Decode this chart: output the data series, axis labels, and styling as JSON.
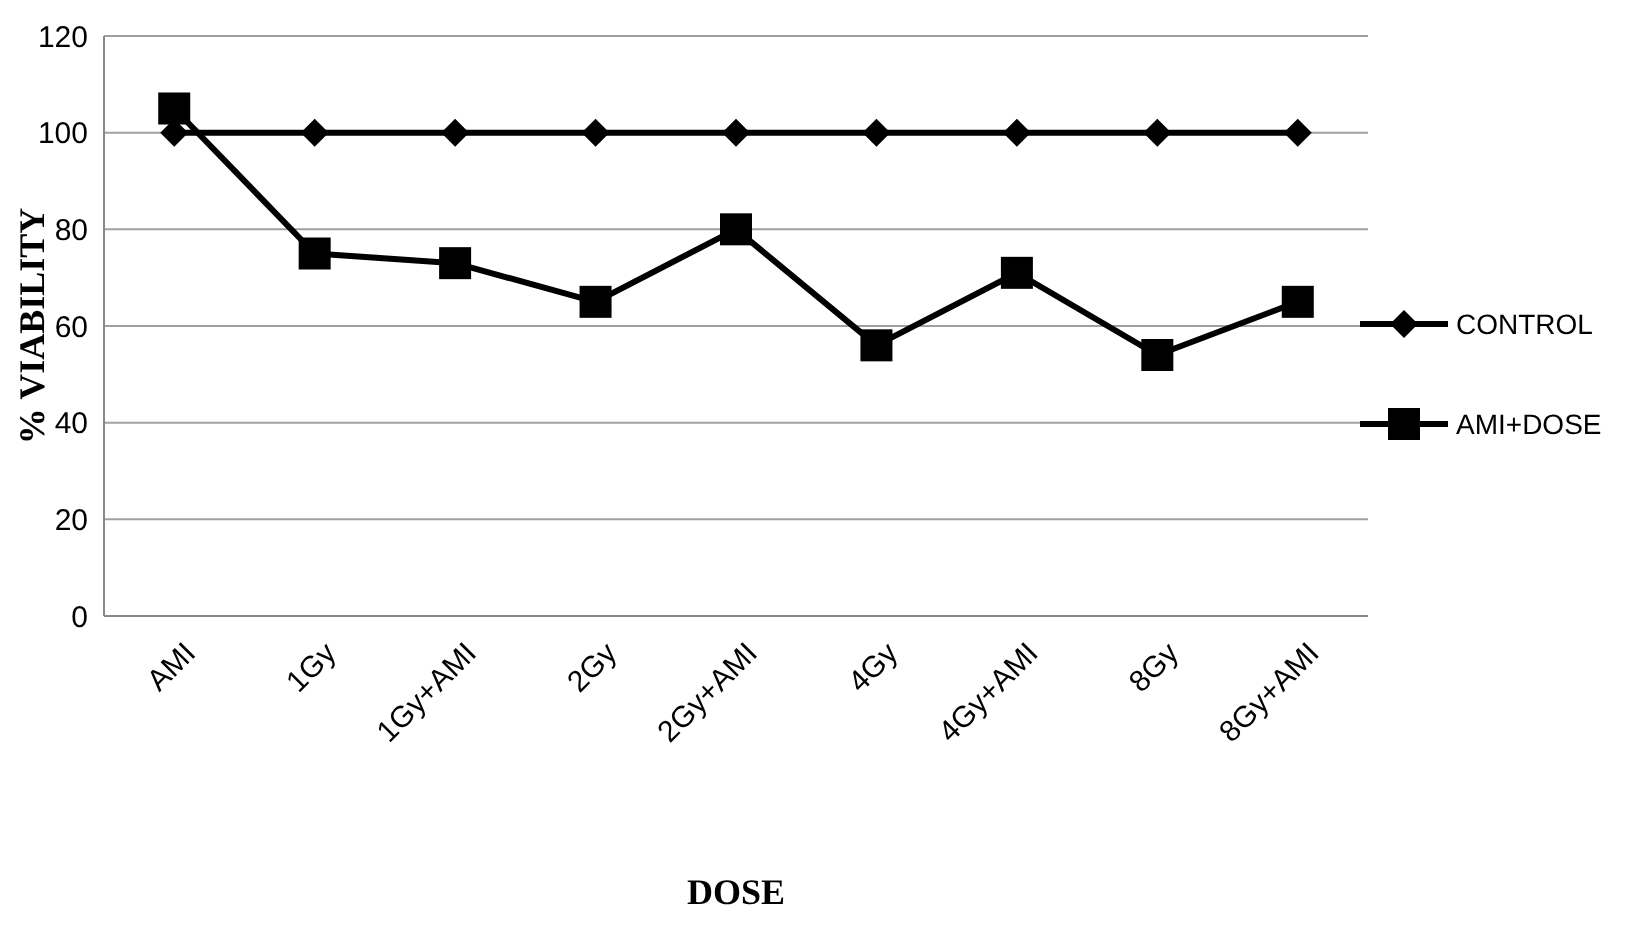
{
  "chart_data": {
    "type": "line",
    "xlabel": "DOSE",
    "ylabel": "% VIABILITY",
    "categories": [
      "AMI",
      "1Gy",
      "1Gy+AMI",
      "2Gy",
      "2Gy+AMI",
      "4Gy",
      "4Gy+AMI",
      "8Gy",
      "8Gy+AMI"
    ],
    "series": [
      {
        "name": "CONTROL",
        "color": "#000000",
        "marker": "diamond",
        "values": [
          100,
          100,
          100,
          100,
          100,
          100,
          100,
          100,
          100
        ]
      },
      {
        "name": "AMI+DOSE",
        "color": "#000000",
        "marker": "square",
        "values": [
          105,
          75,
          73,
          65,
          80,
          56,
          71,
          54,
          65
        ]
      }
    ],
    "ylim": [
      0,
      120
    ],
    "yticks": [
      0,
      20,
      40,
      60,
      80,
      100,
      120
    ],
    "grid": "y",
    "legend": "right",
    "line_style": "solid"
  }
}
